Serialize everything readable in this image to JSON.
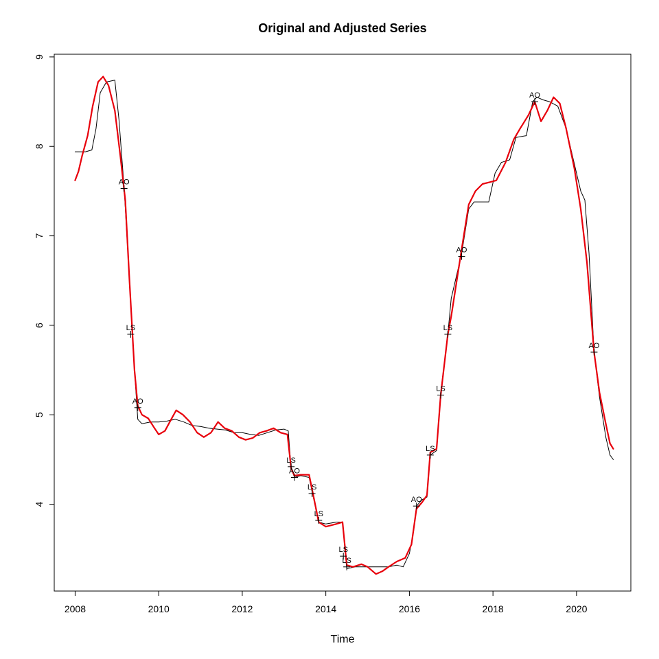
{
  "chart_data": {
    "type": "line",
    "title": "Original and Adjusted Series",
    "xlabel": "Time",
    "ylabel": "",
    "xlim": [
      2007.5,
      2021.3
    ],
    "ylim": [
      3.03,
      9.03
    ],
    "x_ticks": [
      2008,
      2010,
      2012,
      2014,
      2016,
      2018,
      2020
    ],
    "y_ticks": [
      4,
      5,
      6,
      7,
      8,
      9
    ],
    "grid": false,
    "legend": "none",
    "series": [
      {
        "color": "#000000",
        "width": 1,
        "points": [
          [
            2008.0,
            7.94
          ],
          [
            2008.25,
            7.94
          ],
          [
            2008.4,
            7.96
          ],
          [
            2008.5,
            8.2
          ],
          [
            2008.6,
            8.6
          ],
          [
            2008.75,
            8.72
          ],
          [
            2008.95,
            8.74
          ],
          [
            2009.05,
            8.3
          ],
          [
            2009.17,
            7.55
          ],
          [
            2009.3,
            6.5
          ],
          [
            2009.42,
            5.5
          ],
          [
            2009.5,
            4.95
          ],
          [
            2009.6,
            4.9
          ],
          [
            2009.8,
            4.92
          ],
          [
            2010.0,
            4.92
          ],
          [
            2010.2,
            4.93
          ],
          [
            2010.4,
            4.95
          ],
          [
            2010.6,
            4.92
          ],
          [
            2010.8,
            4.88
          ],
          [
            2011.0,
            4.87
          ],
          [
            2011.2,
            4.85
          ],
          [
            2011.4,
            4.84
          ],
          [
            2011.6,
            4.83
          ],
          [
            2011.8,
            4.8
          ],
          [
            2012.0,
            4.8
          ],
          [
            2012.2,
            4.78
          ],
          [
            2012.4,
            4.77
          ],
          [
            2012.6,
            4.8
          ],
          [
            2012.8,
            4.83
          ],
          [
            2013.0,
            4.84
          ],
          [
            2013.1,
            4.82
          ],
          [
            2013.17,
            4.4
          ],
          [
            2013.25,
            4.3
          ],
          [
            2013.4,
            4.32
          ],
          [
            2013.6,
            4.3
          ],
          [
            2013.68,
            4.12
          ],
          [
            2013.83,
            3.8
          ],
          [
            2014.0,
            3.78
          ],
          [
            2014.25,
            3.8
          ],
          [
            2014.4,
            3.8
          ],
          [
            2014.5,
            3.28
          ],
          [
            2014.7,
            3.3
          ],
          [
            2015.0,
            3.3
          ],
          [
            2015.3,
            3.3
          ],
          [
            2015.5,
            3.3
          ],
          [
            2015.7,
            3.32
          ],
          [
            2015.85,
            3.3
          ],
          [
            2016.0,
            3.45
          ],
          [
            2016.1,
            3.7
          ],
          [
            2016.17,
            3.98
          ],
          [
            2016.3,
            4.05
          ],
          [
            2016.42,
            4.08
          ],
          [
            2016.5,
            4.55
          ],
          [
            2016.65,
            4.6
          ],
          [
            2016.75,
            5.25
          ],
          [
            2016.92,
            5.9
          ],
          [
            2017.0,
            6.3
          ],
          [
            2017.25,
            6.8
          ],
          [
            2017.42,
            7.3
          ],
          [
            2017.55,
            7.38
          ],
          [
            2017.7,
            7.38
          ],
          [
            2017.9,
            7.38
          ],
          [
            2018.05,
            7.7
          ],
          [
            2018.2,
            7.82
          ],
          [
            2018.4,
            7.85
          ],
          [
            2018.55,
            8.1
          ],
          [
            2018.8,
            8.12
          ],
          [
            2018.95,
            8.5
          ],
          [
            2019.05,
            8.55
          ],
          [
            2019.2,
            8.52
          ],
          [
            2019.35,
            8.5
          ],
          [
            2019.55,
            8.45
          ],
          [
            2019.75,
            8.2
          ],
          [
            2019.95,
            7.8
          ],
          [
            2020.1,
            7.5
          ],
          [
            2020.2,
            7.4
          ],
          [
            2020.3,
            6.8
          ],
          [
            2020.42,
            5.7
          ],
          [
            2020.55,
            5.2
          ],
          [
            2020.7,
            4.75
          ],
          [
            2020.8,
            4.55
          ],
          [
            2020.88,
            4.5
          ]
        ]
      },
      {
        "color": "#e8000b",
        "width": 2.2,
        "points": [
          [
            2008.0,
            7.62
          ],
          [
            2008.08,
            7.72
          ],
          [
            2008.17,
            7.9
          ],
          [
            2008.3,
            8.12
          ],
          [
            2008.42,
            8.45
          ],
          [
            2008.55,
            8.72
          ],
          [
            2008.67,
            8.78
          ],
          [
            2008.8,
            8.68
          ],
          [
            2008.95,
            8.4
          ],
          [
            2009.08,
            7.9
          ],
          [
            2009.2,
            7.4
          ],
          [
            2009.3,
            6.5
          ],
          [
            2009.42,
            5.5
          ],
          [
            2009.5,
            5.1
          ],
          [
            2009.6,
            5.0
          ],
          [
            2009.75,
            4.96
          ],
          [
            2009.9,
            4.85
          ],
          [
            2010.0,
            4.78
          ],
          [
            2010.15,
            4.82
          ],
          [
            2010.3,
            4.95
          ],
          [
            2010.42,
            5.05
          ],
          [
            2010.58,
            5.0
          ],
          [
            2010.75,
            4.92
          ],
          [
            2010.92,
            4.8
          ],
          [
            2011.08,
            4.75
          ],
          [
            2011.25,
            4.8
          ],
          [
            2011.42,
            4.92
          ],
          [
            2011.58,
            4.85
          ],
          [
            2011.75,
            4.82
          ],
          [
            2011.92,
            4.75
          ],
          [
            2012.08,
            4.72
          ],
          [
            2012.25,
            4.74
          ],
          [
            2012.42,
            4.8
          ],
          [
            2012.58,
            4.82
          ],
          [
            2012.75,
            4.85
          ],
          [
            2012.92,
            4.8
          ],
          [
            2013.08,
            4.78
          ],
          [
            2013.17,
            4.4
          ],
          [
            2013.25,
            4.32
          ],
          [
            2013.4,
            4.33
          ],
          [
            2013.6,
            4.33
          ],
          [
            2013.7,
            4.1
          ],
          [
            2013.83,
            3.8
          ],
          [
            2014.0,
            3.75
          ],
          [
            2014.25,
            3.78
          ],
          [
            2014.4,
            3.8
          ],
          [
            2014.5,
            3.32
          ],
          [
            2014.65,
            3.3
          ],
          [
            2014.85,
            3.33
          ],
          [
            2015.0,
            3.3
          ],
          [
            2015.2,
            3.22
          ],
          [
            2015.35,
            3.25
          ],
          [
            2015.5,
            3.3
          ],
          [
            2015.7,
            3.36
          ],
          [
            2015.9,
            3.4
          ],
          [
            2016.05,
            3.55
          ],
          [
            2016.17,
            3.95
          ],
          [
            2016.3,
            4.02
          ],
          [
            2016.42,
            4.1
          ],
          [
            2016.5,
            4.58
          ],
          [
            2016.65,
            4.62
          ],
          [
            2016.75,
            5.22
          ],
          [
            2016.92,
            5.9
          ],
          [
            2017.0,
            6.1
          ],
          [
            2017.15,
            6.55
          ],
          [
            2017.25,
            6.85
          ],
          [
            2017.42,
            7.35
          ],
          [
            2017.58,
            7.5
          ],
          [
            2017.75,
            7.58
          ],
          [
            2017.92,
            7.6
          ],
          [
            2018.08,
            7.62
          ],
          [
            2018.3,
            7.82
          ],
          [
            2018.5,
            8.08
          ],
          [
            2018.65,
            8.2
          ],
          [
            2018.85,
            8.35
          ],
          [
            2019.0,
            8.5
          ],
          [
            2019.15,
            8.28
          ],
          [
            2019.3,
            8.4
          ],
          [
            2019.45,
            8.55
          ],
          [
            2019.6,
            8.48
          ],
          [
            2019.75,
            8.2
          ],
          [
            2019.95,
            7.75
          ],
          [
            2020.1,
            7.3
          ],
          [
            2020.25,
            6.7
          ],
          [
            2020.42,
            5.7
          ],
          [
            2020.55,
            5.25
          ],
          [
            2020.7,
            4.9
          ],
          [
            2020.8,
            4.68
          ],
          [
            2020.88,
            4.62
          ]
        ]
      }
    ],
    "outliers": [
      {
        "label": "AO",
        "x": 2009.17,
        "y": 7.53
      },
      {
        "label": "LS",
        "x": 2009.33,
        "y": 5.9
      },
      {
        "label": "AO",
        "x": 2009.5,
        "y": 5.08
      },
      {
        "label": "LS",
        "x": 2013.17,
        "y": 4.42
      },
      {
        "label": "AO",
        "x": 2013.25,
        "y": 4.3
      },
      {
        "label": "LS",
        "x": 2013.67,
        "y": 4.12
      },
      {
        "label": "LS",
        "x": 2013.83,
        "y": 3.82
      },
      {
        "label": "LS",
        "x": 2014.42,
        "y": 3.42
      },
      {
        "label": "LS",
        "x": 2014.5,
        "y": 3.3
      },
      {
        "label": "AO",
        "x": 2016.17,
        "y": 3.98
      },
      {
        "label": "LS",
        "x": 2016.5,
        "y": 4.55
      },
      {
        "label": "LS",
        "x": 2016.75,
        "y": 5.22
      },
      {
        "label": "LS",
        "x": 2016.92,
        "y": 5.9
      },
      {
        "label": "AO",
        "x": 2017.25,
        "y": 6.77
      },
      {
        "label": "AO",
        "x": 2019.0,
        "y": 8.5
      },
      {
        "label": "AO",
        "x": 2020.42,
        "y": 5.7
      }
    ]
  }
}
